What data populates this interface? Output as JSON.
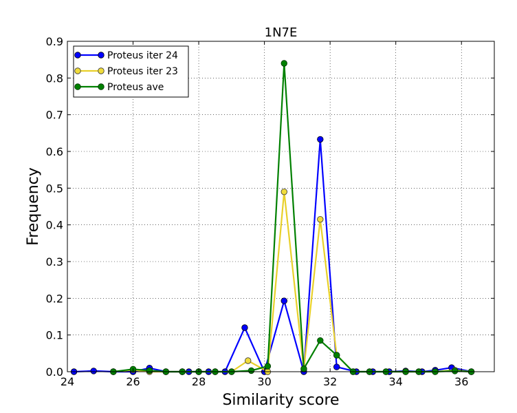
{
  "chart_data": {
    "type": "line",
    "title": "1N7E",
    "xlabel": "Similarity score",
    "ylabel": "Frequency",
    "xlim": [
      24,
      37
    ],
    "ylim": [
      0,
      0.9
    ],
    "xticks": [
      24,
      26,
      28,
      30,
      32,
      34,
      36
    ],
    "xtick_labels": [
      "24",
      "26",
      "28",
      "30",
      "32",
      "34",
      "36"
    ],
    "yticks": [
      0.0,
      0.1,
      0.2,
      0.3,
      0.4,
      0.5,
      0.6,
      0.7,
      0.8,
      0.9
    ],
    "ytick_labels": [
      "0.0",
      "0.1",
      "0.2",
      "0.3",
      "0.4",
      "0.5",
      "0.6",
      "0.7",
      "0.8",
      "0.9"
    ],
    "grid": true,
    "legend_position": "top-left",
    "series": [
      {
        "name": "Proteus iter 24",
        "color": "#0000ff",
        "x": [
          24.2,
          24.8,
          25.4,
          26.0,
          26.5,
          27.0,
          27.5,
          27.7,
          28.0,
          28.3,
          28.5,
          28.8,
          29.4,
          30.0,
          30.6,
          31.2,
          31.7,
          32.2,
          32.8,
          33.3,
          33.8,
          34.3,
          34.8,
          35.2,
          35.7,
          36.3
        ],
        "y": [
          0.0,
          0.002,
          0.0,
          0.0,
          0.01,
          0.0,
          0.0,
          0.0,
          0.0,
          0.0,
          0.0,
          0.0,
          0.12,
          0.0,
          0.193,
          0.0,
          0.633,
          0.013,
          0.0,
          0.0,
          0.0,
          0.002,
          0.0,
          0.004,
          0.011,
          0.0
        ]
      },
      {
        "name": "Proteus iter 23",
        "color": "#e8d02a",
        "x": [
          25.4,
          26.0,
          26.5,
          27.0,
          27.5,
          28.0,
          28.5,
          29.0,
          29.5,
          30.1,
          30.6,
          31.2,
          31.7,
          32.2,
          32.7,
          33.2,
          33.7,
          34.3,
          34.7,
          35.2,
          35.8,
          36.3
        ],
        "y": [
          0.0,
          0.005,
          0.0,
          0.0,
          0.0,
          0.0,
          0.0,
          0.0,
          0.03,
          0.0,
          0.49,
          0.007,
          0.415,
          0.045,
          0.0,
          0.0,
          0.0,
          0.0,
          0.0,
          0.0,
          0.004,
          0.0
        ],
        "marker_face": "#f0dc3c",
        "marker_edge": "#333333"
      },
      {
        "name": "Proteus ave",
        "color": "#008000",
        "x": [
          25.4,
          26.0,
          26.5,
          27.0,
          27.5,
          28.0,
          28.5,
          29.0,
          29.6,
          30.1,
          30.6,
          31.2,
          31.7,
          32.2,
          32.7,
          33.2,
          33.7,
          34.3,
          34.7,
          35.2,
          35.8,
          36.3
        ],
        "y": [
          0.0,
          0.007,
          0.003,
          0.0,
          0.0,
          0.0,
          0.0,
          0.0,
          0.003,
          0.015,
          0.84,
          0.008,
          0.085,
          0.045,
          0.0,
          0.0,
          0.0,
          0.0,
          0.0,
          0.0,
          0.002,
          0.0
        ],
        "marker_face": "#008000",
        "marker_edge": "#003300"
      }
    ]
  }
}
